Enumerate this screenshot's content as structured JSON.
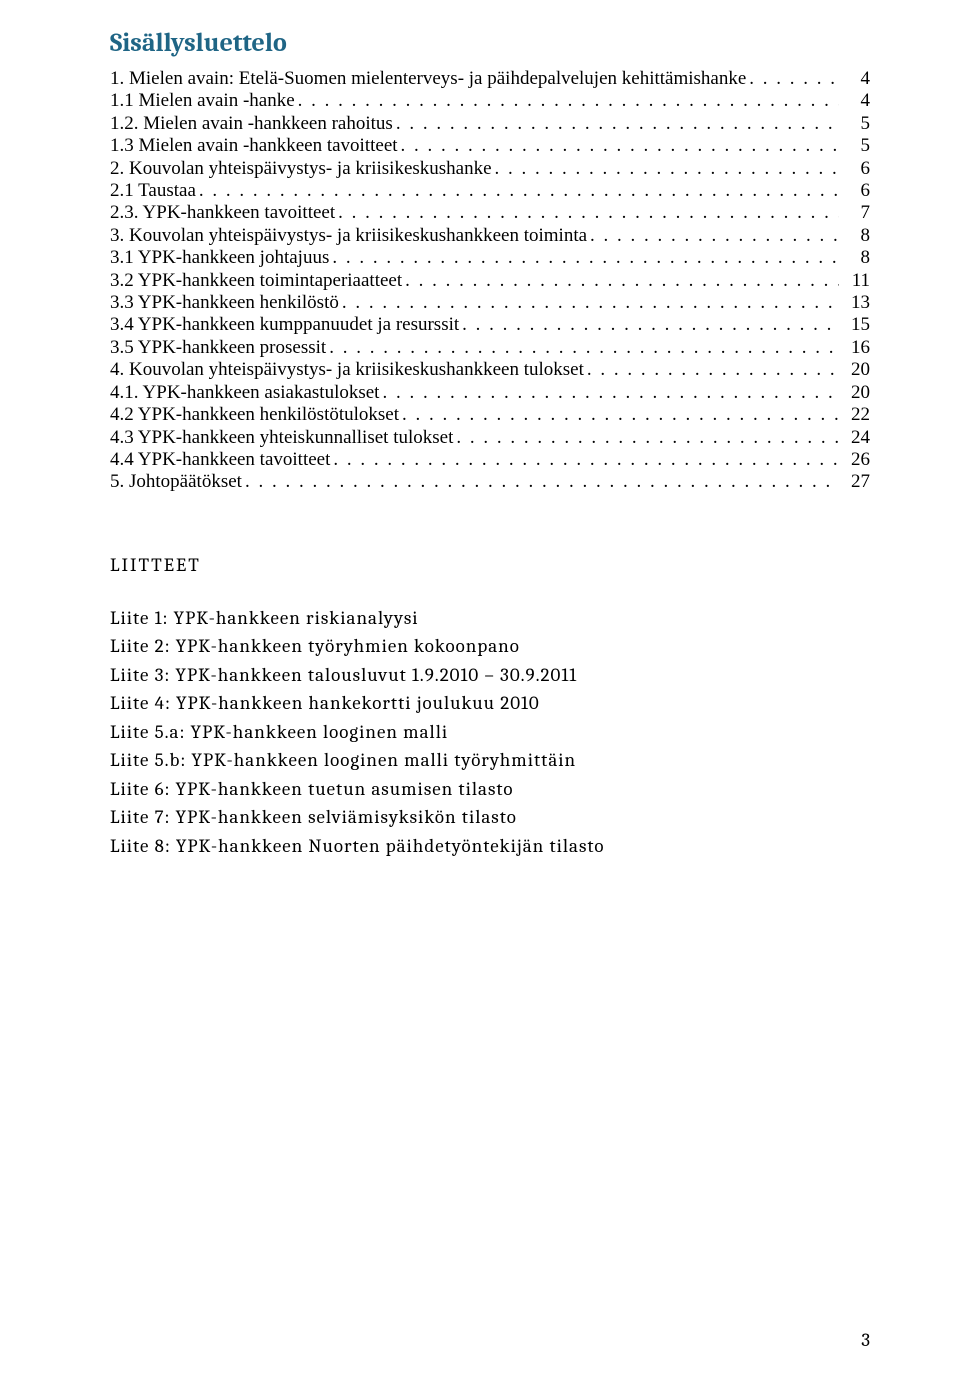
{
  "title": "Sisällysluettelo",
  "toc": [
    {
      "label": "1. Mielen avain: Etelä-Suomen mielenterveys- ja päihdepalvelujen kehittämishanke",
      "page": "4"
    },
    {
      "label": "1.1 Mielen avain -hanke",
      "page": "4"
    },
    {
      "label": "1.2. Mielen avain -hankkeen rahoitus",
      "page": "5"
    },
    {
      "label": "1.3 Mielen avain -hankkeen tavoitteet",
      "page": "5"
    },
    {
      "label": "2. Kouvolan yhteispäivystys- ja kriisikeskushanke",
      "page": "6"
    },
    {
      "label": "2.1 Taustaa",
      "page": "6"
    },
    {
      "label": "2.3. YPK-hankkeen tavoitteet",
      "page": "7"
    },
    {
      "label": "3. Kouvolan yhteispäivystys- ja kriisikeskushankkeen toiminta",
      "page": "8"
    },
    {
      "label": "3.1 YPK-hankkeen johtajuus",
      "page": "8"
    },
    {
      "label": "3.2 YPK-hankkeen toimintaperiaatteet",
      "page": "11"
    },
    {
      "label": "3.3 YPK-hankkeen henkilöstö",
      "page": "13"
    },
    {
      "label": "3.4 YPK-hankkeen kumppanuudet ja resurssit",
      "page": "15"
    },
    {
      "label": "3.5 YPK-hankkeen prosessit",
      "page": "16"
    },
    {
      "label": "4. Kouvolan yhteispäivystys- ja kriisikeskushankkeen tulokset",
      "page": "20"
    },
    {
      "label": "4.1. YPK-hankkeen asiakastulokset",
      "page": "20"
    },
    {
      "label": "4.2 YPK-hankkeen henkilöstötulokset",
      "page": "22"
    },
    {
      "label": "4.3 YPK-hankkeen yhteiskunnalliset tulokset",
      "page": "24"
    },
    {
      "label": "4.4 YPK-hankkeen tavoitteet",
      "page": "26"
    },
    {
      "label": "5. Johtopäätökset",
      "page": "27"
    }
  ],
  "liitteet_heading": "LIITTEET",
  "liitteet": [
    "Liite 1: YPK-hankkeen riskianalyysi",
    "Liite 2: YPK-hankkeen työryhmien kokoonpano",
    "Liite 3: YPK-hankkeen talousluvut 1.9.2010 – 30.9.2011",
    "Liite 4: YPK-hankkeen hankekortti joulukuu 2010",
    "Liite 5.a: YPK-hankkeen looginen malli",
    "Liite 5.b: YPK-hankkeen looginen malli työryhmittäin",
    "Liite 6: YPK-hankkeen tuetun asumisen tilasto",
    "Liite 7: YPK-hankkeen selviämisyksikön tilasto",
    "Liite 8: YPK-hankkeen Nuorten päihdetyöntekijän tilasto"
  ],
  "page_number": "3",
  "colors": {
    "title": "#1f6585",
    "text": "#000000",
    "background": "#ffffff"
  },
  "dots": ". . . . . . . . . . . . . . . . . . . . . . . . . . . . . . . . . . . . . . . . . . . . . . . . . . . . . . . . . . . . . . . . . . . . . . . . . . . . . . . . . . . . . . . . . . . . . . . . . . . . . . . . . . . . . . . . . . . . . . . ."
}
